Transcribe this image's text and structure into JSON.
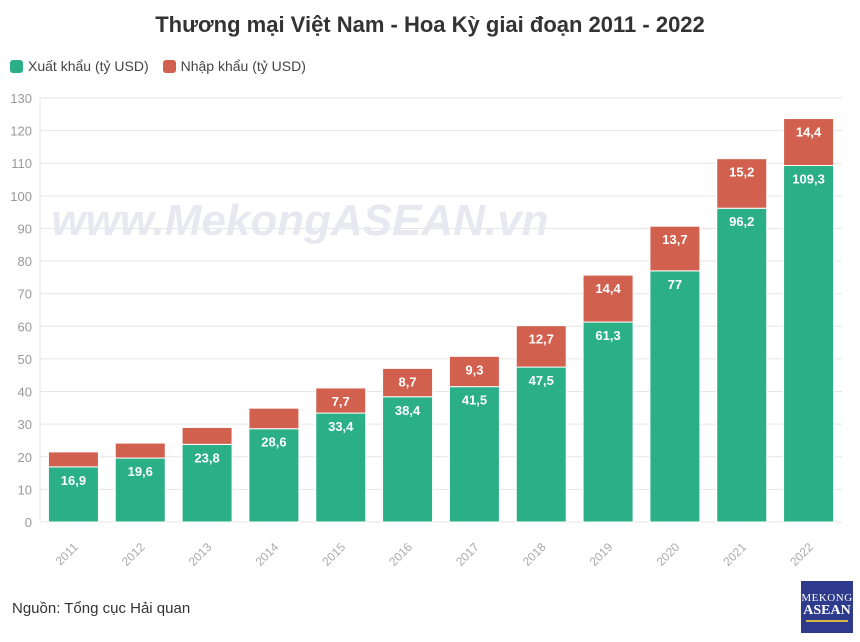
{
  "chart_data": {
    "type": "bar",
    "stacked": true,
    "title": "Thương mại Việt Nam - Hoa Kỳ giai đoạn 2011 - 2022",
    "categories": [
      "2011",
      "2012",
      "2013",
      "2014",
      "2015",
      "2016",
      "2017",
      "2018",
      "2019",
      "2020",
      "2021",
      "2022"
    ],
    "series": [
      {
        "name": "Xuất khẩu (tỷ USD)",
        "color": "#2aaf86",
        "values": [
          16.9,
          19.6,
          23.8,
          28.6,
          33.4,
          38.4,
          41.5,
          47.5,
          61.3,
          77,
          96.2,
          109.3
        ],
        "labels": [
          "16,9",
          "19,6",
          "23,8",
          "28,6",
          "33,4",
          "38,4",
          "41,5",
          "47,5",
          "61,3",
          "77",
          "96,2",
          "109,3"
        ]
      },
      {
        "name": "Nhập khẩu (tỷ USD)",
        "color": "#d2604f",
        "values": [
          4.6,
          4.6,
          5.2,
          6.3,
          7.7,
          8.7,
          9.3,
          12.7,
          14.4,
          13.7,
          15.2,
          14.4
        ],
        "labels": [
          "",
          "",
          "",
          "",
          "7,7",
          "8,7",
          "9,3",
          "12,7",
          "14,4",
          "13,7",
          "15,2",
          "14,4"
        ]
      }
    ],
    "ylim": [
      0,
      130
    ],
    "yticks": [
      0,
      10,
      20,
      30,
      40,
      50,
      60,
      70,
      80,
      90,
      100,
      110,
      120,
      130
    ],
    "grid": true,
    "legend": "top-left",
    "watermark": "www.MekongASEAN.vn"
  },
  "source": "Nguồn: Tổng cục Hải quan",
  "logo": {
    "line1": "MEKONG",
    "line2": "ASEAN"
  }
}
